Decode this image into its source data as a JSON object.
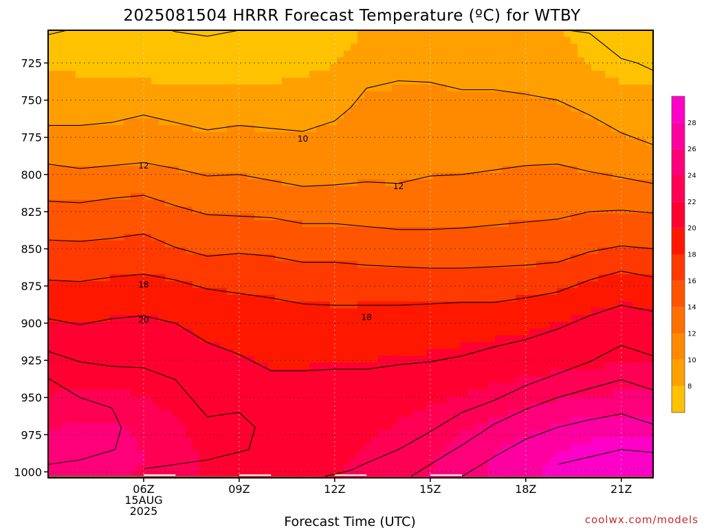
{
  "title": "2025081504 HRRR Forecast Temperature (ºC) for WTBY",
  "xlabel": "Forecast Time (UTC)",
  "credit": "coolwx.com/models",
  "chart_data": {
    "type": "heatmap",
    "title": "2025081504 HRRR Forecast Temperature (ºC) for WTBY",
    "xlabel": "Forecast Time (UTC)",
    "ylabel": "",
    "x_range_hours": [
      3,
      21
    ],
    "y_range_hpa": [
      700,
      1000
    ],
    "x_ticks": [
      {
        "hour": 6,
        "labels": [
          "06Z",
          "15AUG",
          "2025"
        ]
      },
      {
        "hour": 9,
        "labels": [
          "09Z"
        ]
      },
      {
        "hour": 12,
        "labels": [
          "12Z"
        ]
      },
      {
        "hour": 15,
        "labels": [
          "15Z"
        ]
      },
      {
        "hour": 18,
        "labels": [
          "18Z"
        ]
      },
      {
        "hour": 21,
        "labels": [
          "21Z"
        ]
      }
    ],
    "y_ticks": [
      725,
      750,
      775,
      800,
      825,
      850,
      875,
      900,
      925,
      950,
      975,
      1000
    ],
    "grid": true,
    "contour_interval_c": 2,
    "contour_labels": [
      {
        "text": "10",
        "hour": 11,
        "pressure": 776
      },
      {
        "text": "12",
        "hour": 6,
        "pressure": 794
      },
      {
        "text": "12",
        "hour": 14,
        "pressure": 808
      },
      {
        "text": "18",
        "hour": 6,
        "pressure": 874
      },
      {
        "text": "18",
        "hour": 13,
        "pressure": 896
      },
      {
        "text": "20",
        "hour": 6,
        "pressure": 898
      }
    ],
    "contours": [
      {
        "level": 8,
        "points": [
          [
            3,
            706
          ],
          [
            4,
            701
          ],
          [
            5,
            697
          ],
          [
            6,
            697
          ],
          [
            7,
            704
          ],
          [
            8,
            707
          ],
          [
            9,
            703
          ],
          [
            10,
            701
          ],
          [
            11,
            699
          ],
          [
            11.5,
            690
          ]
        ]
      },
      {
        "level": 8,
        "points": [
          [
            18.5,
            700
          ],
          [
            19,
            702
          ],
          [
            20,
            705
          ],
          [
            21,
            722
          ],
          [
            21.5,
            725
          ],
          [
            22,
            730
          ]
        ]
      },
      {
        "level": 10,
        "points": [
          [
            3,
            767
          ],
          [
            4,
            767
          ],
          [
            5,
            765
          ],
          [
            6,
            760
          ],
          [
            7,
            765
          ],
          [
            8,
            770
          ],
          [
            9,
            767
          ],
          [
            10,
            769
          ],
          [
            11,
            771
          ],
          [
            12,
            764
          ],
          [
            12.5,
            755
          ],
          [
            13,
            742
          ],
          [
            14,
            737
          ],
          [
            15,
            738
          ],
          [
            16,
            743
          ],
          [
            17,
            743
          ],
          [
            18,
            746
          ],
          [
            19,
            750
          ],
          [
            20,
            760
          ],
          [
            21,
            772
          ],
          [
            22,
            780
          ]
        ]
      },
      {
        "level": 12,
        "points": [
          [
            3,
            793
          ],
          [
            4,
            796
          ],
          [
            5,
            794
          ],
          [
            6,
            792
          ],
          [
            7,
            796
          ],
          [
            8,
            801
          ],
          [
            9,
            800
          ],
          [
            10,
            804
          ],
          [
            11,
            808
          ],
          [
            12,
            807
          ],
          [
            13,
            805
          ],
          [
            14,
            806
          ],
          [
            15,
            801
          ],
          [
            16,
            800
          ],
          [
            17,
            797
          ],
          [
            18,
            794
          ],
          [
            19,
            793
          ],
          [
            20,
            798
          ],
          [
            21,
            802
          ],
          [
            22,
            806
          ]
        ]
      },
      {
        "level": 14,
        "points": [
          [
            3,
            818
          ],
          [
            4,
            819
          ],
          [
            5,
            816
          ],
          [
            6,
            814
          ],
          [
            7,
            821
          ],
          [
            8,
            827
          ],
          [
            9,
            828
          ],
          [
            10,
            829
          ],
          [
            11,
            833
          ],
          [
            12,
            833
          ],
          [
            13,
            835
          ],
          [
            14,
            837
          ],
          [
            15,
            837
          ],
          [
            16,
            836
          ],
          [
            17,
            834
          ],
          [
            18,
            832
          ],
          [
            19,
            830
          ],
          [
            20,
            825
          ],
          [
            21,
            824
          ],
          [
            22,
            826
          ]
        ]
      },
      {
        "level": 16,
        "points": [
          [
            3,
            844
          ],
          [
            4,
            845
          ],
          [
            5,
            843
          ],
          [
            6,
            840
          ],
          [
            7,
            849
          ],
          [
            8,
            855
          ],
          [
            9,
            853
          ],
          [
            10,
            855
          ],
          [
            11,
            859
          ],
          [
            12,
            859
          ],
          [
            13,
            861
          ],
          [
            14,
            862
          ],
          [
            15,
            863
          ],
          [
            16,
            863
          ],
          [
            17,
            862
          ],
          [
            18,
            861
          ],
          [
            19,
            859
          ],
          [
            20,
            852
          ],
          [
            21,
            848
          ],
          [
            22,
            850
          ]
        ]
      },
      {
        "level": 18,
        "points": [
          [
            3,
            871
          ],
          [
            4,
            872
          ],
          [
            5,
            869
          ],
          [
            6,
            867
          ],
          [
            7,
            871
          ],
          [
            8,
            877
          ],
          [
            9,
            880
          ],
          [
            10,
            883
          ],
          [
            11,
            887
          ],
          [
            12,
            888
          ],
          [
            13,
            888
          ],
          [
            14,
            888
          ],
          [
            15,
            887
          ],
          [
            16,
            886
          ],
          [
            17,
            886
          ],
          [
            18,
            883
          ],
          [
            19,
            879
          ],
          [
            20,
            871
          ],
          [
            21,
            865
          ],
          [
            22,
            869
          ]
        ]
      },
      {
        "level": 20,
        "points": [
          [
            3,
            897
          ],
          [
            4,
            901
          ],
          [
            5,
            897
          ],
          [
            6,
            895
          ],
          [
            7,
            900
          ],
          [
            8,
            913
          ],
          [
            9,
            921
          ],
          [
            10,
            932
          ],
          [
            11,
            932
          ],
          [
            12,
            931
          ],
          [
            13,
            931
          ],
          [
            14,
            928
          ],
          [
            15,
            926
          ],
          [
            16,
            922
          ],
          [
            17,
            916
          ],
          [
            18,
            911
          ],
          [
            19,
            904
          ],
          [
            20,
            895
          ],
          [
            21,
            888
          ],
          [
            22,
            892
          ]
        ]
      },
      {
        "level": 22,
        "points": [
          [
            3,
            919
          ],
          [
            4,
            926
          ],
          [
            5,
            929
          ],
          [
            6,
            930
          ],
          [
            7,
            938
          ],
          [
            8,
            963
          ],
          [
            9,
            960
          ],
          [
            9.5,
            970
          ],
          [
            9.3,
            985
          ],
          [
            8,
            992
          ],
          [
            7,
            995
          ],
          [
            6,
            998
          ]
        ]
      },
      {
        "level": 22,
        "points": [
          [
            11.7,
            1003
          ],
          [
            12.5,
            999
          ],
          [
            13,
            994
          ],
          [
            14,
            985
          ],
          [
            15,
            973
          ],
          [
            16,
            960
          ],
          [
            17,
            952
          ],
          [
            18,
            942
          ],
          [
            19,
            934
          ],
          [
            20,
            926
          ],
          [
            21,
            915
          ],
          [
            22,
            922
          ]
        ]
      },
      {
        "level": 24,
        "points": [
          [
            3,
            937
          ],
          [
            4,
            950
          ],
          [
            5,
            957
          ],
          [
            5.3,
            970
          ],
          [
            5.1,
            985
          ],
          [
            4,
            992
          ],
          [
            3,
            995
          ]
        ]
      },
      {
        "level": 24,
        "points": [
          [
            14.4,
            1003
          ],
          [
            15,
            995
          ],
          [
            16,
            982
          ],
          [
            17,
            968
          ],
          [
            18,
            958
          ],
          [
            19,
            950
          ],
          [
            20,
            944
          ],
          [
            21,
            938
          ],
          [
            22,
            945
          ]
        ]
      },
      {
        "level": 26,
        "points": [
          [
            16,
            1003
          ],
          [
            17,
            990
          ],
          [
            18,
            978
          ],
          [
            19,
            970
          ],
          [
            20,
            965
          ],
          [
            21,
            961
          ],
          [
            22,
            968
          ]
        ]
      },
      {
        "level": 28,
        "points": [
          [
            19,
            995
          ],
          [
            20,
            990
          ],
          [
            21,
            985
          ],
          [
            22,
            987
          ]
        ]
      }
    ],
    "colorbar": {
      "ticks": [
        8,
        10,
        12,
        14,
        16,
        18,
        20,
        22,
        24,
        26,
        28
      ],
      "bins": [
        {
          "from": 6,
          "to": 8,
          "color": "#ffc200"
        },
        {
          "from": 8,
          "to": 10,
          "color": "#ffa000"
        },
        {
          "from": 10,
          "to": 12,
          "color": "#ff8a00"
        },
        {
          "from": 12,
          "to": 14,
          "color": "#ff7000"
        },
        {
          "from": 14,
          "to": 16,
          "color": "#ff5500"
        },
        {
          "from": 16,
          "to": 18,
          "color": "#ff3a00"
        },
        {
          "from": 18,
          "to": 20,
          "color": "#ff1800"
        },
        {
          "from": 20,
          "to": 22,
          "color": "#ff0030"
        },
        {
          "from": 22,
          "to": 24,
          "color": "#ff0055"
        },
        {
          "from": 24,
          "to": 26,
          "color": "#ff007a"
        },
        {
          "from": 26,
          "to": 28,
          "color": "#ff00a0"
        },
        {
          "from": 28,
          "to": 30,
          "color": "#ff00c8"
        }
      ]
    },
    "ground_color": "#a0522d"
  }
}
